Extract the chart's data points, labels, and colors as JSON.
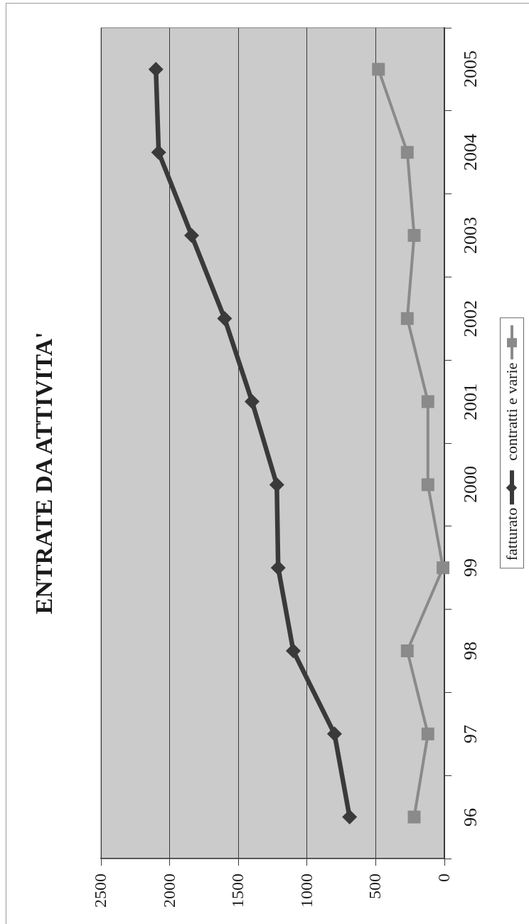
{
  "chart_data": {
    "type": "line",
    "title": "ENTRATE DA ATTIVITA'",
    "orientation": "horizontal",
    "categories": [
      "2005",
      "2004",
      "2003",
      "2002",
      "2001",
      "2000",
      "99",
      "98",
      "97",
      "96"
    ],
    "series": [
      {
        "name": "fatturato",
        "color": "#3a3a3a",
        "marker": "diamond",
        "values": [
          2100,
          2080,
          1840,
          1600,
          1400,
          1220,
          1210,
          1100,
          800,
          690
        ]
      },
      {
        "name": "contratti e varie",
        "color": "#8a8a8a",
        "marker": "square",
        "values": [
          480,
          270,
          220,
          270,
          120,
          120,
          10,
          270,
          120,
          220
        ]
      }
    ],
    "xlim": [
      2500,
      0
    ],
    "xticks": [
      2500,
      2000,
      1500,
      1000,
      500,
      0
    ],
    "grid": "x",
    "legend": "right"
  }
}
